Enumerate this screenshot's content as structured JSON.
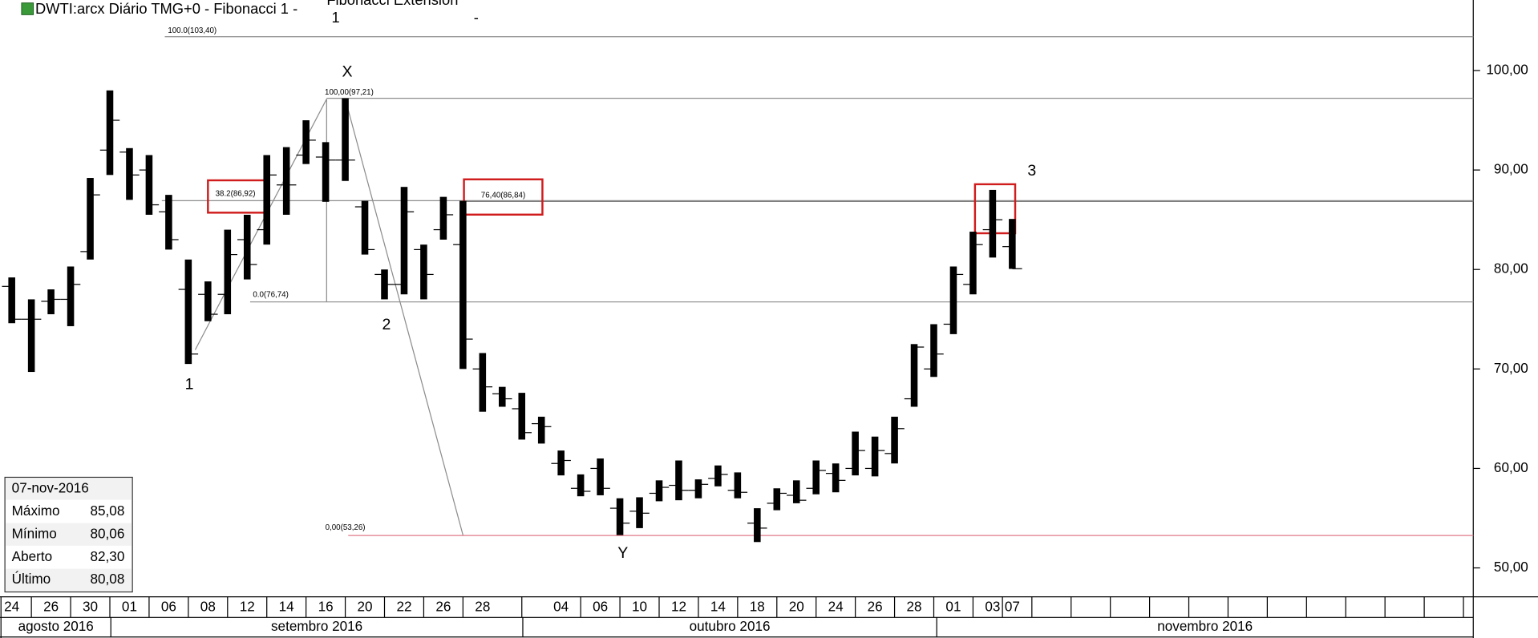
{
  "chart_data": {
    "type": "ohlc",
    "title": "DWTI:arcx Diário TMG+0  -  Fibonacci 1 -",
    "subtitle": "Fibonacci Extension",
    "header_extra": [
      "1",
      "-"
    ],
    "categories": [
      "24",
      null,
      "26",
      null,
      "30",
      null,
      "01",
      null,
      "06",
      null,
      "08",
      null,
      "12",
      null,
      "14",
      null,
      "16",
      null,
      "20",
      null,
      "22",
      null,
      "26",
      null,
      "28",
      null,
      null,
      null,
      "04",
      null,
      "06",
      null,
      "10",
      null,
      "12",
      null,
      "14",
      null,
      "18",
      null,
      "20",
      null,
      "24",
      null,
      "26",
      null,
      "28",
      null,
      "01",
      null,
      "03",
      "07"
    ],
    "months": [
      "agosto 2016",
      "setembro 2016",
      "outubro 2016",
      "novembro 2016"
    ],
    "open": [
      78.3,
      75.0,
      76.8,
      77.0,
      81.8,
      92.0,
      91.8,
      90.0,
      85.8,
      78.0,
      77.5,
      77.5,
      83.0,
      84.0,
      88.5,
      91.5,
      91.3,
      91.0,
      86.3,
      79.5,
      78.5,
      82.0,
      84.0,
      82.5,
      70.0,
      67.5,
      66.0,
      64.5,
      60.5,
      58.0,
      60.0,
      56.0,
      55.7,
      57.5,
      58.3,
      57.8,
      59.0,
      57.8,
      54.5,
      56.5,
      57.3,
      58.0,
      59.5,
      60.0,
      60.0,
      61.5,
      67.0,
      70.0,
      74.5,
      78.5,
      84.0,
      82.3
    ],
    "high": [
      79.2,
      77.0,
      78.0,
      80.3,
      89.2,
      98.0,
      92.2,
      91.5,
      87.5,
      81.0,
      78.8,
      84.0,
      85.5,
      91.5,
      92.3,
      95.0,
      92.8,
      97.21,
      86.9,
      80.0,
      88.3,
      82.5,
      87.3,
      86.9,
      71.6,
      68.2,
      67.6,
      65.2,
      61.8,
      59.4,
      61.0,
      57.0,
      57.1,
      58.8,
      60.8,
      58.9,
      60.3,
      59.6,
      56.0,
      58.0,
      58.8,
      60.8,
      60.5,
      63.7,
      63.2,
      65.2,
      72.5,
      74.5,
      80.3,
      83.8,
      88.0,
      85.08
    ],
    "low": [
      74.6,
      69.7,
      75.5,
      74.3,
      81.0,
      89.5,
      87.0,
      85.5,
      82.0,
      70.5,
      74.8,
      75.5,
      79.0,
      82.5,
      85.5,
      90.6,
      86.8,
      88.9,
      81.5,
      77.0,
      77.5,
      77.0,
      83.0,
      70.0,
      65.7,
      66.2,
      62.9,
      62.5,
      59.3,
      57.2,
      57.3,
      53.3,
      54.0,
      56.7,
      56.8,
      57.0,
      58.2,
      57.0,
      52.6,
      55.8,
      56.5,
      57.4,
      57.6,
      59.3,
      59.2,
      60.5,
      66.2,
      69.2,
      73.5,
      77.5,
      81.2,
      80.06
    ],
    "close": [
      75.0,
      75.0,
      77.0,
      78.5,
      87.5,
      95.0,
      89.5,
      86.5,
      83.0,
      71.5,
      75.5,
      81.5,
      80.5,
      89.5,
      88.5,
      93.0,
      91.0,
      91.0,
      82.0,
      78.5,
      85.8,
      79.5,
      85.5,
      73.0,
      68.2,
      67.0,
      63.6,
      64.2,
      60.8,
      57.7,
      58.0,
      54.5,
      55.5,
      58.1,
      57.8,
      58.4,
      59.4,
      57.6,
      54.0,
      57.5,
      56.8,
      59.8,
      58.8,
      61.8,
      61.8,
      64.0,
      72.2,
      71.5,
      79.5,
      82.5,
      85.0,
      80.08
    ],
    "color": "#000000",
    "ylim": [
      47.19,
      107.09
    ],
    "yticks": [
      {
        "value": 50,
        "label": "50,00"
      },
      {
        "value": 60,
        "label": "60,00"
      },
      {
        "value": 70,
        "label": "70,00"
      },
      {
        "value": 80,
        "label": "80,00"
      },
      {
        "value": 90,
        "label": "90,00"
      },
      {
        "value": 100,
        "label": "100,00"
      }
    ],
    "fib_levels": [
      {
        "value": 103.4,
        "label": "100.0(103,40)"
      },
      {
        "value": 97.21,
        "label": "100,00(97,21)"
      },
      {
        "value": 86.92,
        "label": "38.2(86,92)"
      },
      {
        "value": 86.84,
        "label": "76,40(86,84)"
      },
      {
        "value": 76.74,
        "label": "0.0(76,74)"
      },
      {
        "value": 53.26,
        "label": "0,00(53,26)"
      }
    ],
    "annotations": [
      "X",
      "Y",
      "1",
      "2",
      "3"
    ],
    "info_box": {
      "date": "07-nov-2016",
      "rows": [
        [
          "Máximo",
          "85,08"
        ],
        [
          "Mínimo",
          "80,06"
        ],
        [
          "Aberto",
          "82,30"
        ],
        [
          "Último",
          "80,08"
        ]
      ]
    }
  }
}
